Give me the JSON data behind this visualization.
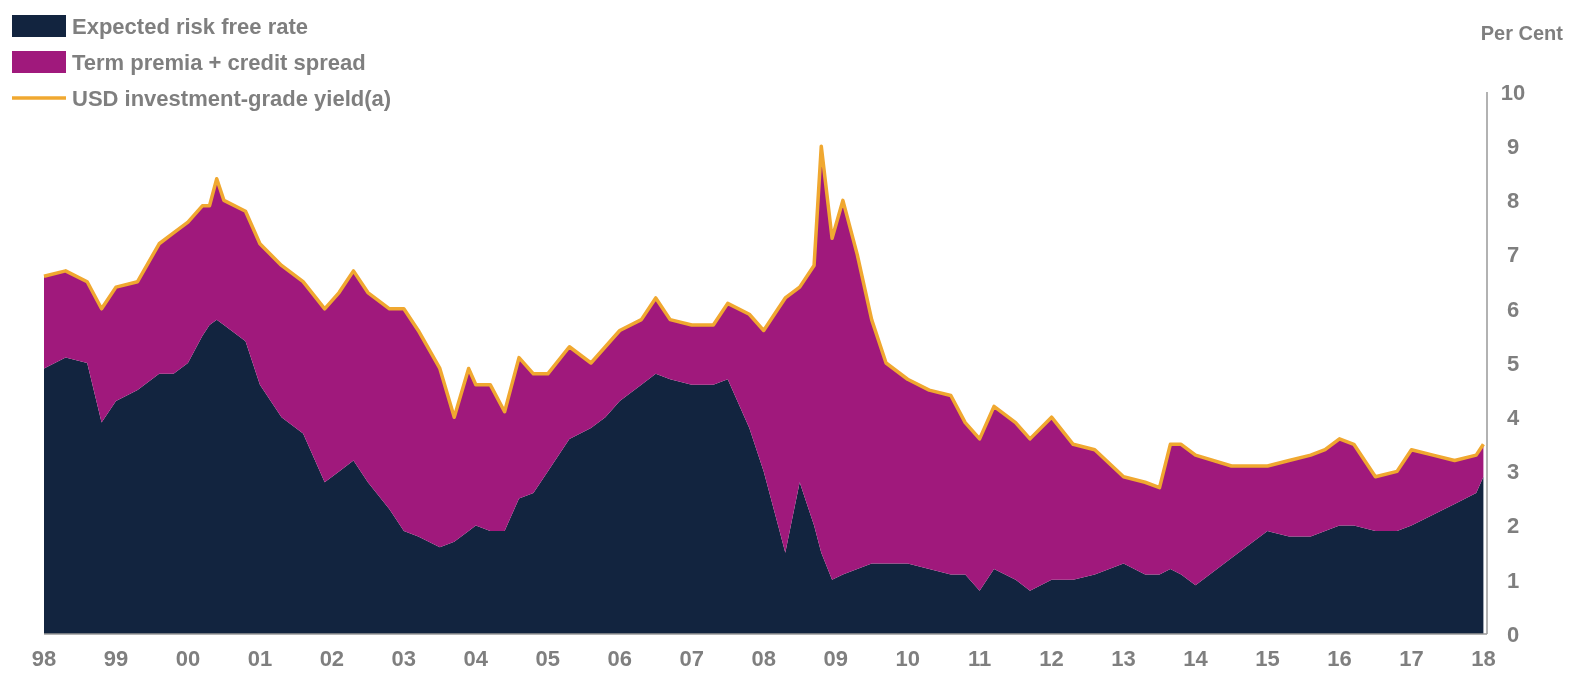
{
  "chart_data": {
    "type": "area",
    "stacked": true,
    "ylabel": "Per Cent",
    "legend": "top left",
    "grid": false,
    "x": [
      1998.0,
      1998.3,
      1998.6,
      1998.8,
      1999.0,
      1999.3,
      1999.6,
      1999.8,
      2000.0,
      2000.2,
      2000.3,
      2000.4,
      2000.5,
      2000.8,
      2001.0,
      2001.3,
      2001.6,
      2001.9,
      2002.1,
      2002.3,
      2002.5,
      2002.8,
      2003.0,
      2003.2,
      2003.5,
      2003.7,
      2003.9,
      2004.0,
      2004.2,
      2004.4,
      2004.6,
      2004.8,
      2005.0,
      2005.3,
      2005.6,
      2005.8,
      2006.0,
      2006.3,
      2006.5,
      2006.7,
      2007.0,
      2007.3,
      2007.5,
      2007.8,
      2008.0,
      2008.2,
      2008.3,
      2008.5,
      2008.7,
      2008.8,
      2008.95,
      2009.1,
      2009.3,
      2009.5,
      2009.7,
      2010.0,
      2010.3,
      2010.6,
      2010.8,
      2011.0,
      2011.2,
      2011.5,
      2011.7,
      2012.0,
      2012.3,
      2012.6,
      2013.0,
      2013.3,
      2013.5,
      2013.65,
      2013.8,
      2014.0,
      2014.5,
      2015.0,
      2015.3,
      2015.6,
      2015.8,
      2016.0,
      2016.2,
      2016.5,
      2016.8,
      2017.0,
      2017.3,
      2017.6,
      2017.9,
      2018.0
    ],
    "series": [
      {
        "name": "Expected risk free rate",
        "color": "#12243f",
        "values": [
          4.9,
          5.1,
          5.0,
          3.9,
          4.3,
          4.5,
          4.8,
          4.8,
          5.0,
          5.5,
          5.7,
          5.8,
          5.7,
          5.4,
          4.6,
          4.0,
          3.7,
          2.8,
          3.0,
          3.2,
          2.8,
          2.3,
          1.9,
          1.8,
          1.6,
          1.7,
          1.9,
          2.0,
          1.9,
          1.9,
          2.5,
          2.6,
          3.0,
          3.6,
          3.8,
          4.0,
          4.3,
          4.6,
          4.8,
          4.7,
          4.6,
          4.6,
          4.7,
          3.8,
          3.0,
          2.0,
          1.5,
          2.8,
          2.0,
          1.5,
          1.0,
          1.1,
          1.2,
          1.3,
          1.3,
          1.3,
          1.2,
          1.1,
          1.1,
          0.8,
          1.2,
          1.0,
          0.8,
          1.0,
          1.0,
          1.1,
          1.3,
          1.1,
          1.1,
          1.2,
          1.1,
          0.9,
          1.4,
          1.9,
          1.8,
          1.8,
          1.9,
          2.0,
          2.0,
          1.9,
          1.9,
          2.0,
          2.2,
          2.4,
          2.6,
          2.9
        ]
      },
      {
        "name": "Term premia + credit spread",
        "color": "#a0197c",
        "values": [
          1.7,
          1.6,
          1.5,
          2.1,
          2.1,
          2.0,
          2.4,
          2.6,
          2.6,
          2.4,
          2.2,
          2.6,
          2.3,
          2.4,
          2.6,
          2.8,
          2.8,
          3.2,
          3.3,
          3.5,
          3.5,
          3.7,
          4.1,
          3.8,
          3.3,
          2.3,
          3.0,
          2.6,
          2.7,
          2.2,
          2.6,
          2.2,
          1.8,
          1.7,
          1.2,
          1.3,
          1.3,
          1.2,
          1.4,
          1.1,
          1.1,
          1.1,
          1.4,
          2.1,
          2.6,
          4.0,
          4.7,
          3.6,
          4.8,
          7.5,
          6.3,
          6.9,
          5.8,
          4.5,
          3.7,
          3.4,
          3.3,
          3.3,
          2.8,
          2.8,
          3.0,
          2.9,
          2.8,
          3.0,
          2.5,
          2.3,
          1.6,
          1.7,
          1.6,
          2.3,
          2.4,
          2.4,
          1.7,
          1.2,
          1.4,
          1.5,
          1.5,
          1.6,
          1.5,
          1.0,
          1.1,
          1.4,
          1.1,
          0.8,
          0.7,
          0.6
        ]
      },
      {
        "name": "USD investment-grade yield(a)",
        "color": "#f0a830",
        "type": "line",
        "values": [
          6.6,
          6.7,
          6.5,
          6.0,
          6.4,
          6.5,
          7.2,
          7.4,
          7.6,
          7.9,
          7.9,
          8.4,
          8.0,
          7.8,
          7.2,
          6.8,
          6.5,
          6.0,
          6.3,
          6.7,
          6.3,
          6.0,
          6.0,
          5.6,
          4.9,
          4.0,
          4.9,
          4.6,
          4.6,
          4.1,
          5.1,
          4.8,
          4.8,
          5.3,
          5.0,
          5.3,
          5.6,
          5.8,
          6.2,
          5.8,
          5.7,
          5.7,
          6.1,
          5.9,
          5.6,
          6.0,
          6.2,
          6.4,
          6.8,
          9.0,
          7.3,
          8.0,
          7.0,
          5.8,
          5.0,
          4.7,
          4.5,
          4.4,
          3.9,
          3.6,
          4.2,
          3.9,
          3.6,
          4.0,
          3.5,
          3.4,
          2.9,
          2.8,
          2.7,
          3.5,
          3.5,
          3.3,
          3.1,
          3.1,
          3.2,
          3.3,
          3.4,
          3.6,
          3.5,
          2.9,
          3.0,
          3.4,
          3.3,
          3.2,
          3.3,
          3.5
        ]
      }
    ],
    "xlim": [
      1998,
      2018.05
    ],
    "xticks": [
      {
        "value": 1998,
        "label": "98"
      },
      {
        "value": 1999,
        "label": "99"
      },
      {
        "value": 2000,
        "label": "00"
      },
      {
        "value": 2001,
        "label": "01"
      },
      {
        "value": 2002,
        "label": "02"
      },
      {
        "value": 2003,
        "label": "03"
      },
      {
        "value": 2004,
        "label": "04"
      },
      {
        "value": 2005,
        "label": "05"
      },
      {
        "value": 2006,
        "label": "06"
      },
      {
        "value": 2007,
        "label": "07"
      },
      {
        "value": 2008,
        "label": "08"
      },
      {
        "value": 2009,
        "label": "09"
      },
      {
        "value": 2010,
        "label": "10"
      },
      {
        "value": 2011,
        "label": "11"
      },
      {
        "value": 2012,
        "label": "12"
      },
      {
        "value": 2013,
        "label": "13"
      },
      {
        "value": 2014,
        "label": "14"
      },
      {
        "value": 2015,
        "label": "15"
      },
      {
        "value": 2016,
        "label": "16"
      },
      {
        "value": 2017,
        "label": "17"
      },
      {
        "value": 2018,
        "label": "18"
      }
    ],
    "ylim": [
      0,
      10
    ],
    "yticks": [
      0,
      1,
      2,
      3,
      4,
      5,
      6,
      7,
      8,
      9,
      10
    ]
  }
}
